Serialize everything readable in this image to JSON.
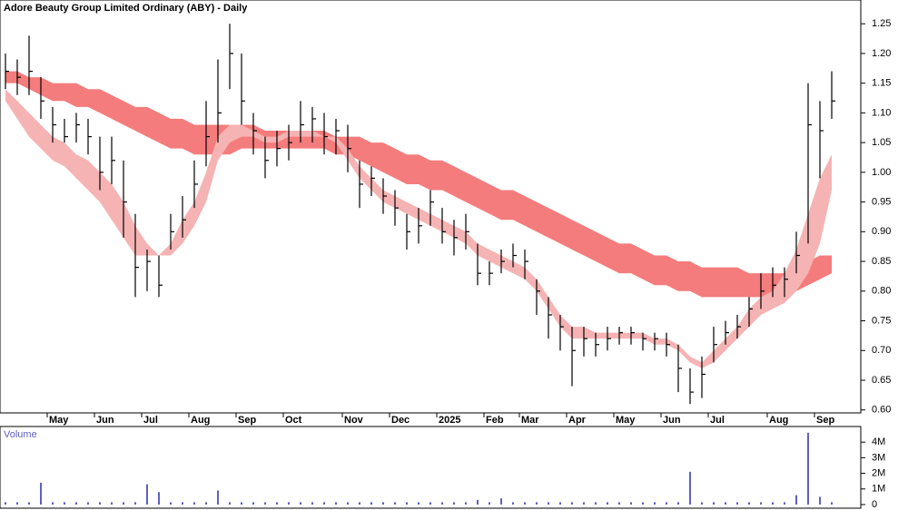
{
  "chart_data": {
    "type": "ohlc",
    "title": "Adore Beauty Group Limited Ordinary (ABY) - Daily",
    "categories": [
      null,
      null,
      null,
      null,
      "May",
      null,
      null,
      null,
      "Jun",
      null,
      null,
      null,
      "Jul",
      null,
      null,
      null,
      "Aug",
      null,
      null,
      null,
      "Sep",
      null,
      null,
      null,
      "Oct",
      null,
      null,
      null,
      null,
      "Nov",
      null,
      null,
      null,
      "Dec",
      null,
      null,
      null,
      "2025",
      null,
      null,
      null,
      "Feb",
      null,
      null,
      "Mar",
      null,
      null,
      null,
      "Apr",
      null,
      null,
      null,
      "May",
      null,
      null,
      null,
      "Jun",
      null,
      null,
      null,
      "Jul",
      null,
      null,
      null,
      null,
      "Aug",
      null,
      null,
      null,
      "Sep",
      null
    ],
    "high": [
      1.2,
      1.19,
      1.23,
      1.16,
      1.11,
      1.09,
      1.1,
      1.09,
      1.06,
      1.06,
      1.02,
      0.93,
      0.87,
      0.86,
      0.93,
      0.96,
      1.02,
      1.12,
      1.19,
      1.25,
      1.2,
      1.1,
      1.06,
      1.07,
      1.08,
      1.12,
      1.11,
      1.1,
      1.09,
      1.08,
      1.02,
      1.01,
      0.99,
      0.97,
      0.93,
      0.94,
      0.97,
      0.94,
      0.92,
      0.93,
      0.88,
      0.85,
      0.87,
      0.88,
      0.87,
      0.82,
      0.79,
      0.76,
      0.74,
      0.74,
      0.73,
      0.74,
      0.74,
      0.74,
      0.73,
      0.73,
      0.73,
      0.71,
      0.67,
      0.69,
      0.74,
      0.75,
      0.76,
      0.79,
      0.83,
      0.84,
      0.84,
      0.9,
      1.15,
      1.12,
      1.17
    ],
    "low": [
      1.14,
      1.13,
      1.13,
      1.09,
      1.05,
      1.05,
      1.05,
      1.03,
      0.97,
      0.98,
      0.89,
      0.79,
      0.8,
      0.79,
      0.87,
      0.89,
      0.94,
      1.01,
      1.05,
      1.14,
      1.08,
      1.03,
      0.99,
      1.01,
      1.02,
      1.05,
      1.05,
      1.03,
      1.03,
      1.0,
      0.94,
      0.96,
      0.93,
      0.91,
      0.87,
      0.88,
      0.91,
      0.88,
      0.86,
      0.87,
      0.81,
      0.81,
      0.83,
      0.84,
      0.82,
      0.76,
      0.72,
      0.7,
      0.64,
      0.69,
      0.69,
      0.7,
      0.71,
      0.71,
      0.7,
      0.7,
      0.69,
      0.63,
      0.61,
      0.62,
      0.68,
      0.71,
      0.72,
      0.74,
      0.77,
      0.79,
      0.79,
      0.83,
      0.88,
      0.99,
      1.09
    ],
    "close": [
      1.17,
      1.16,
      1.17,
      1.12,
      1.08,
      1.06,
      1.08,
      1.06,
      1.0,
      1.02,
      0.95,
      0.84,
      0.85,
      0.81,
      0.9,
      0.92,
      0.98,
      1.06,
      1.1,
      1.2,
      1.12,
      1.07,
      1.02,
      1.04,
      1.05,
      1.08,
      1.09,
      1.06,
      1.07,
      1.04,
      0.98,
      0.99,
      0.96,
      0.94,
      0.9,
      0.91,
      0.95,
      0.9,
      0.89,
      0.9,
      0.83,
      0.83,
      0.85,
      0.86,
      0.85,
      0.8,
      0.76,
      0.74,
      0.7,
      0.72,
      0.71,
      0.72,
      0.73,
      0.73,
      0.72,
      0.72,
      0.71,
      0.67,
      0.63,
      0.66,
      0.71,
      0.73,
      0.74,
      0.77,
      0.8,
      0.81,
      0.82,
      0.86,
      1.08,
      1.07,
      1.12
    ],
    "color": "#000000",
    "bands": [
      {
        "color": "#f47c7c",
        "upper": [
          1.17,
          1.17,
          1.16,
          1.16,
          1.15,
          1.15,
          1.15,
          1.14,
          1.14,
          1.13,
          1.12,
          1.11,
          1.11,
          1.1,
          1.09,
          1.09,
          1.08,
          1.08,
          1.08,
          1.08,
          1.08,
          1.08,
          1.07,
          1.07,
          1.07,
          1.07,
          1.07,
          1.07,
          1.06,
          1.06,
          1.06,
          1.05,
          1.05,
          1.04,
          1.03,
          1.03,
          1.02,
          1.02,
          1.01,
          1.0,
          0.99,
          0.98,
          0.97,
          0.97,
          0.96,
          0.95,
          0.94,
          0.93,
          0.92,
          0.91,
          0.9,
          0.89,
          0.88,
          0.88,
          0.87,
          0.86,
          0.86,
          0.85,
          0.85,
          0.84,
          0.84,
          0.84,
          0.84,
          0.83,
          0.83,
          0.83,
          0.83,
          0.84,
          0.85,
          0.86,
          0.86
        ],
        "lower": [
          1.15,
          1.15,
          1.14,
          1.13,
          1.12,
          1.12,
          1.11,
          1.11,
          1.1,
          1.09,
          1.08,
          1.07,
          1.06,
          1.05,
          1.04,
          1.04,
          1.03,
          1.03,
          1.03,
          1.03,
          1.04,
          1.04,
          1.04,
          1.04,
          1.04,
          1.04,
          1.04,
          1.04,
          1.03,
          1.03,
          1.02,
          1.01,
          1.0,
          0.99,
          0.98,
          0.98,
          0.97,
          0.97,
          0.96,
          0.95,
          0.94,
          0.93,
          0.92,
          0.92,
          0.91,
          0.9,
          0.89,
          0.88,
          0.87,
          0.86,
          0.85,
          0.84,
          0.83,
          0.83,
          0.82,
          0.81,
          0.81,
          0.8,
          0.8,
          0.79,
          0.79,
          0.79,
          0.79,
          0.79,
          0.79,
          0.79,
          0.79,
          0.8,
          0.81,
          0.82,
          0.83
        ]
      },
      {
        "color": "#f6b3b3",
        "upper": [
          1.14,
          1.12,
          1.1,
          1.08,
          1.06,
          1.05,
          1.03,
          1.02,
          1.0,
          0.98,
          0.95,
          0.91,
          0.88,
          0.86,
          0.88,
          0.92,
          0.95,
          1.0,
          1.06,
          1.08,
          1.08,
          1.07,
          1.06,
          1.06,
          1.07,
          1.07,
          1.07,
          1.06,
          1.06,
          1.04,
          1.01,
          0.99,
          0.97,
          0.96,
          0.95,
          0.94,
          0.93,
          0.92,
          0.91,
          0.9,
          0.88,
          0.87,
          0.86,
          0.85,
          0.84,
          0.82,
          0.79,
          0.76,
          0.74,
          0.74,
          0.73,
          0.73,
          0.73,
          0.73,
          0.73,
          0.72,
          0.72,
          0.71,
          0.69,
          0.68,
          0.7,
          0.72,
          0.74,
          0.77,
          0.79,
          0.8,
          0.83,
          0.87,
          0.93,
          0.99,
          1.03
        ],
        "lower": [
          1.12,
          1.09,
          1.06,
          1.04,
          1.02,
          1.01,
          0.99,
          0.97,
          0.95,
          0.92,
          0.89,
          0.86,
          0.86,
          0.86,
          0.86,
          0.88,
          0.91,
          0.95,
          1.02,
          1.05,
          1.06,
          1.06,
          1.05,
          1.05,
          1.06,
          1.06,
          1.06,
          1.06,
          1.05,
          1.02,
          0.99,
          0.97,
          0.95,
          0.94,
          0.93,
          0.92,
          0.91,
          0.9,
          0.89,
          0.88,
          0.86,
          0.85,
          0.84,
          0.83,
          0.82,
          0.8,
          0.77,
          0.74,
          0.72,
          0.72,
          0.72,
          0.72,
          0.72,
          0.72,
          0.72,
          0.71,
          0.71,
          0.7,
          0.68,
          0.67,
          0.68,
          0.7,
          0.72,
          0.74,
          0.76,
          0.77,
          0.78,
          0.8,
          0.83,
          0.88,
          0.97
        ]
      }
    ],
    "ylim": [
      0.595,
      1.29
    ],
    "yticks": [
      {
        "value": 0.6,
        "label": "0.60"
      },
      0.65,
      {
        "value": 0.7,
        "label": "0.70"
      },
      0.75,
      {
        "value": 0.8,
        "label": "0.80"
      },
      0.85,
      {
        "value": 0.9,
        "label": "0.90"
      },
      0.95,
      {
        "value": 1,
        "label": "1.00"
      },
      1.05,
      {
        "value": 1.1,
        "label": "1.10"
      },
      1.15,
      {
        "value": 1.2,
        "label": "1.20"
      },
      1.25
    ],
    "volume": {
      "title": "Volume",
      "color": "#6060c0",
      "values": [
        0.15,
        0.15,
        0.15,
        1.4,
        0.15,
        0.15,
        0.15,
        0.15,
        0.15,
        0.15,
        0.15,
        0.15,
        1.3,
        0.8,
        0.15,
        0.15,
        0.15,
        0.15,
        0.9,
        0.15,
        0.15,
        0.15,
        0.15,
        0.15,
        0.15,
        0.15,
        0.15,
        0.15,
        0.15,
        0.15,
        0.15,
        0.15,
        0.15,
        0.15,
        0.15,
        0.15,
        0.15,
        0.15,
        0.15,
        0.15,
        0.3,
        0.15,
        0.4,
        0.15,
        0.15,
        0.15,
        0.15,
        0.15,
        0.15,
        0.15,
        0.15,
        0.15,
        0.15,
        0.15,
        0.15,
        0.15,
        0.15,
        0.15,
        2.1,
        0.15,
        0.15,
        0.15,
        0.15,
        0.15,
        0.15,
        0.15,
        0.15,
        0.6,
        4.6,
        0.5,
        0.15
      ],
      "ylim": [
        0,
        5
      ],
      "yticks": [
        0,
        {
          "value": 1,
          "label": "1M"
        },
        {
          "value": 2,
          "label": "2M"
        },
        {
          "value": 3,
          "label": "3M"
        },
        {
          "value": 4,
          "label": "4M"
        }
      ]
    }
  }
}
